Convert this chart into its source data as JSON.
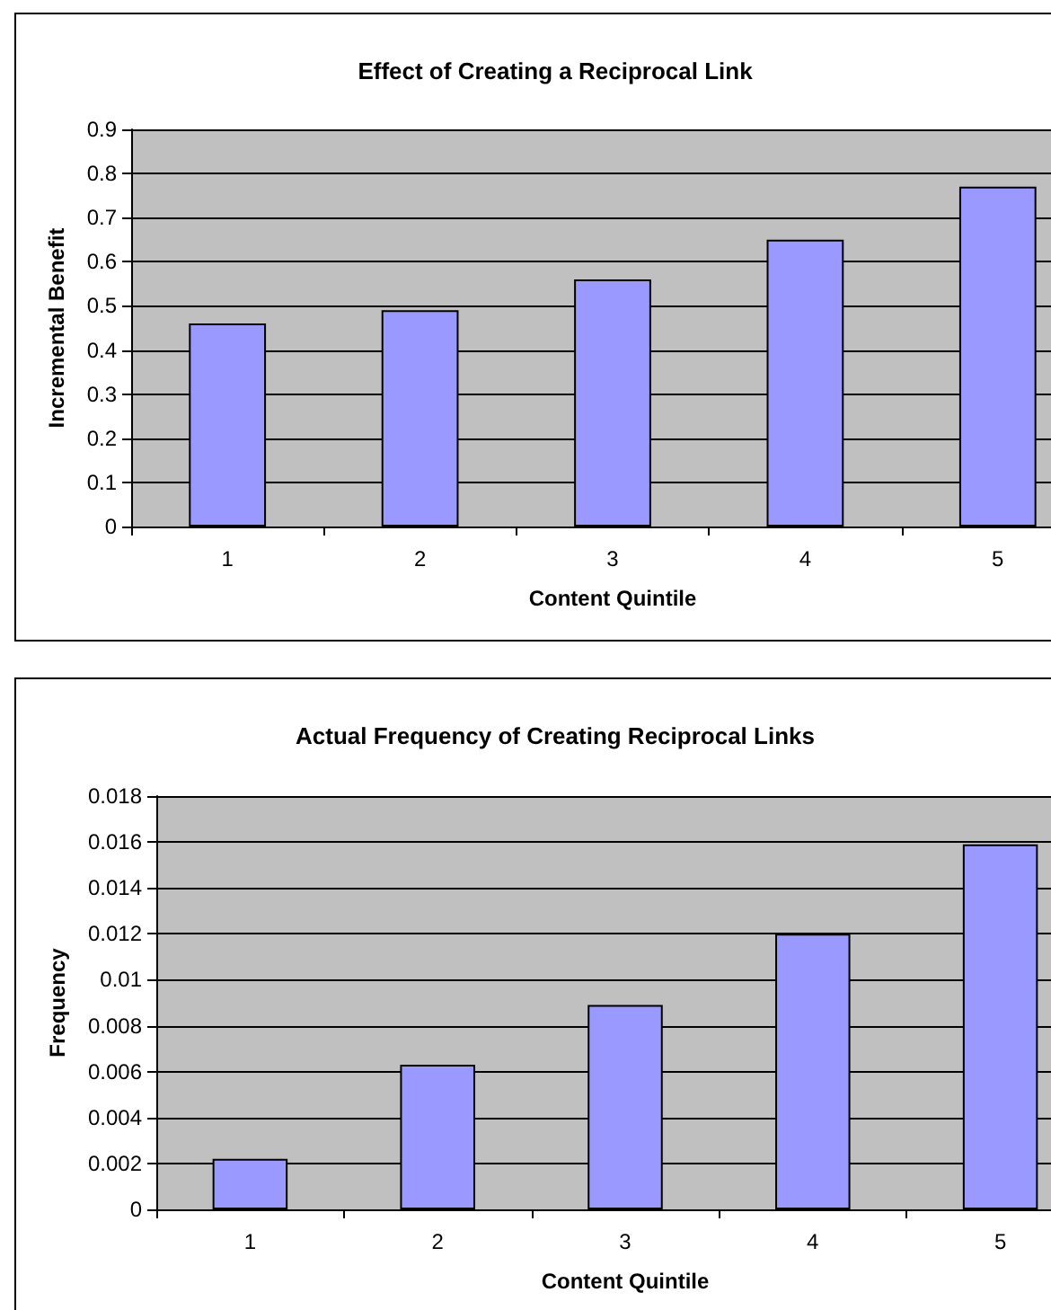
{
  "chart_data": [
    {
      "type": "bar",
      "title": "Effect of Creating a Reciprocal Link",
      "xlabel": "Content Quintile",
      "ylabel": "Incremental Benefit",
      "categories": [
        "1",
        "2",
        "3",
        "4",
        "5"
      ],
      "values": [
        0.46,
        0.49,
        0.56,
        0.65,
        0.77
      ],
      "color": "#9999ff",
      "ylim": [
        0,
        0.9
      ],
      "yticks": [
        0,
        0.1,
        0.2,
        0.3,
        0.4,
        0.5,
        0.6,
        0.7,
        0.8,
        0.9
      ],
      "grid": "y"
    },
    {
      "type": "bar",
      "title": "Actual Frequency of Creating Reciprocal Links",
      "xlabel": "Content Quintile",
      "ylabel": "Frequency",
      "categories": [
        "1",
        "2",
        "3",
        "4",
        "5"
      ],
      "values": [
        0.0022,
        0.0063,
        0.0089,
        0.012,
        0.0159
      ],
      "color": "#9999ff",
      "ylim": [
        0,
        0.018
      ],
      "yticks": [
        0,
        0.002,
        0.004,
        0.006,
        0.008,
        0.01,
        0.012,
        0.014,
        0.016,
        0.018
      ],
      "grid": "y"
    }
  ]
}
